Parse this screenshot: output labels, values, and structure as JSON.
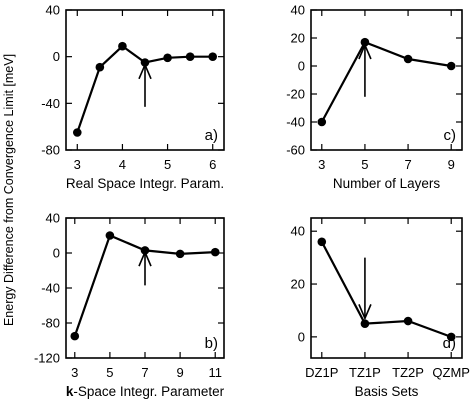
{
  "ylabel": "Energy Difference from Convergence Limit [meV]",
  "chart_data": [
    {
      "type": "line",
      "id": "a",
      "panel_label": "a)",
      "xlabel": "Real Space Integr. Param.",
      "xlabel_bold_prefix": "",
      "x_ticks": [
        "3",
        "4",
        "5",
        "6"
      ],
      "x_tick_values": [
        3,
        4,
        5,
        6
      ],
      "xlim": [
        2.75,
        6.25
      ],
      "y_ticks": [
        "-80",
        "-40",
        "0",
        "40"
      ],
      "y_tick_values": [
        -80,
        -40,
        0,
        40
      ],
      "ylim": [
        -80,
        40
      ],
      "series": [
        {
          "x": [
            3,
            3.5,
            4,
            4.5,
            5,
            5.5,
            6
          ],
          "y": [
            -65,
            -9,
            9,
            -5,
            -1,
            0,
            0
          ]
        }
      ],
      "arrow": {
        "x": 4.5,
        "y_tail": -43,
        "y_head": -7
      }
    },
    {
      "type": "line",
      "id": "c",
      "panel_label": "c)",
      "xlabel": "Number of Layers",
      "xlabel_bold_prefix": "",
      "x_ticks": [
        "3",
        "5",
        "7",
        "9"
      ],
      "x_tick_values": [
        3,
        5,
        7,
        9
      ],
      "xlim": [
        2.5,
        9.5
      ],
      "y_ticks": [
        "-60",
        "-40",
        "-20",
        "0",
        "20",
        "40"
      ],
      "y_tick_values": [
        -60,
        -40,
        -20,
        0,
        20,
        40
      ],
      "ylim": [
        -60,
        40
      ],
      "series": [
        {
          "x": [
            3,
            5,
            7,
            9
          ],
          "y": [
            -40,
            17,
            5,
            0
          ]
        }
      ],
      "arrow": {
        "x": 5,
        "y_tail": -22,
        "y_head": 15
      }
    },
    {
      "type": "line",
      "id": "b",
      "panel_label": "b)",
      "xlabel": "-Space Integr. Parameter",
      "xlabel_bold_prefix": "k",
      "x_ticks": [
        "3",
        "5",
        "7",
        "9",
        "11"
      ],
      "x_tick_values": [
        3,
        5,
        7,
        9,
        11
      ],
      "xlim": [
        2.5,
        11.5
      ],
      "y_ticks": [
        "-120",
        "-80",
        "-40",
        "0",
        "40"
      ],
      "y_tick_values": [
        -120,
        -80,
        -40,
        0,
        40
      ],
      "ylim": [
        -120,
        40
      ],
      "series": [
        {
          "x": [
            3,
            5,
            7,
            9,
            11
          ],
          "y": [
            -95,
            20,
            3,
            -1,
            1
          ]
        }
      ],
      "arrow": {
        "x": 7,
        "y_tail": -37,
        "y_head": 1
      }
    },
    {
      "type": "line",
      "id": "d",
      "panel_label": "d)",
      "xlabel": "Basis Sets",
      "xlabel_bold_prefix": "",
      "x_ticks": [
        "DZ1P",
        "TZ1P",
        "TZ2P",
        "QZMP"
      ],
      "x_tick_values": [
        1,
        2,
        3,
        4
      ],
      "xlim": [
        0.75,
        4.25
      ],
      "y_ticks": [
        "0",
        "20",
        "40"
      ],
      "y_tick_values": [
        0,
        20,
        40
      ],
      "ylim": [
        -8,
        45
      ],
      "series": [
        {
          "x": [
            1,
            2,
            3,
            4
          ],
          "y": [
            36,
            5,
            6,
            0
          ]
        }
      ],
      "arrow": {
        "x": 2,
        "y_tail": 30,
        "y_head": 7
      }
    }
  ]
}
